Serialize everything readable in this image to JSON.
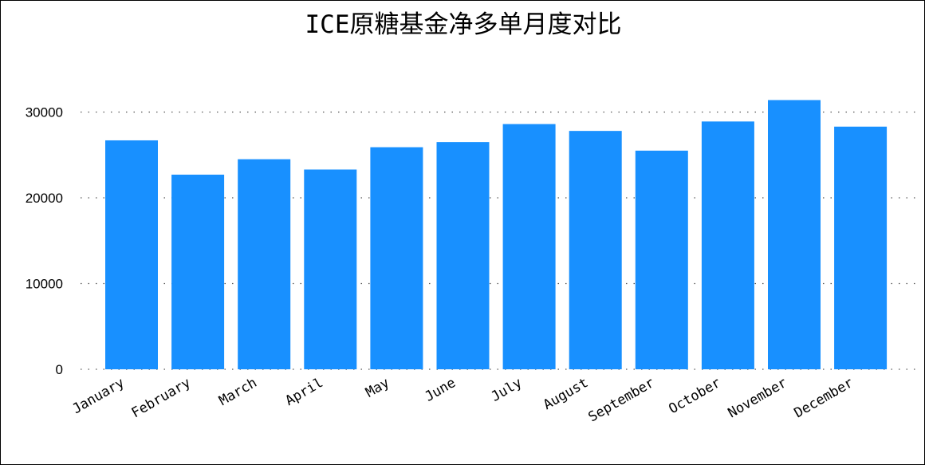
{
  "chart_data": {
    "type": "bar",
    "title": "ICE原糖基金净多单月度对比",
    "xlabel": "",
    "ylabel": "",
    "categories": [
      "January",
      "February",
      "March",
      "April",
      "May",
      "June",
      "July",
      "August",
      "September",
      "October",
      "November",
      "December"
    ],
    "values": [
      26700,
      22700,
      24500,
      23300,
      25900,
      26500,
      28600,
      27800,
      25500,
      28900,
      31400,
      28300
    ],
    "ylim": [
      0,
      36000
    ],
    "yticks": [
      "0",
      "10000",
      "20000",
      "30000"
    ],
    "grid": true,
    "bar_color": "#1890ff",
    "legend": "none"
  }
}
